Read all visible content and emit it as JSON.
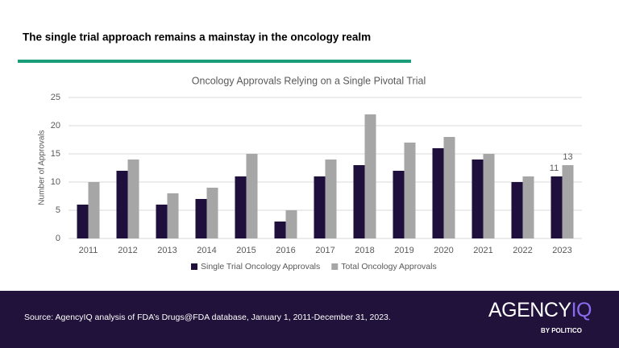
{
  "header": {
    "title": "The single trial approach remains a mainstay in the oncology realm"
  },
  "chart_data": {
    "type": "bar",
    "title": "Oncology Approvals Relying on a Single Pivotal Trial",
    "y_label": "Number of Approvals",
    "categories": [
      "2011",
      "2012",
      "2013",
      "2014",
      "2015",
      "2016",
      "2017",
      "2018",
      "2019",
      "2020",
      "2021",
      "2022",
      "2023"
    ],
    "series": [
      {
        "name": "Single Trial Oncology Approvals",
        "color": "#1f0f3d",
        "values": [
          6,
          12,
          6,
          7,
          11,
          3,
          11,
          13,
          12,
          16,
          14,
          10,
          11
        ],
        "value_labels": [
          null,
          null,
          null,
          null,
          null,
          null,
          null,
          null,
          null,
          null,
          null,
          null,
          "11"
        ]
      },
      {
        "name": "Total Oncology Approvals",
        "color": "#a6a6a6",
        "values": [
          10,
          14,
          8,
          9,
          15,
          5,
          14,
          22,
          17,
          18,
          15,
          11,
          13
        ],
        "value_labels": [
          null,
          null,
          null,
          null,
          null,
          null,
          null,
          null,
          null,
          null,
          null,
          null,
          "13"
        ]
      }
    ],
    "ylim": [
      0,
      25
    ],
    "yticks": [
      0,
      5,
      10,
      15,
      20,
      25
    ],
    "grid": true,
    "legend": "bottom"
  },
  "footer": {
    "source": "Source: AgencyIQ analysis of FDA’s Drugs@FDA database, January 1, 2011-December 31, 2023.",
    "logo": [
      "AGENCY",
      "IQ"
    ],
    "logo_sub": "BY POLITICO"
  }
}
